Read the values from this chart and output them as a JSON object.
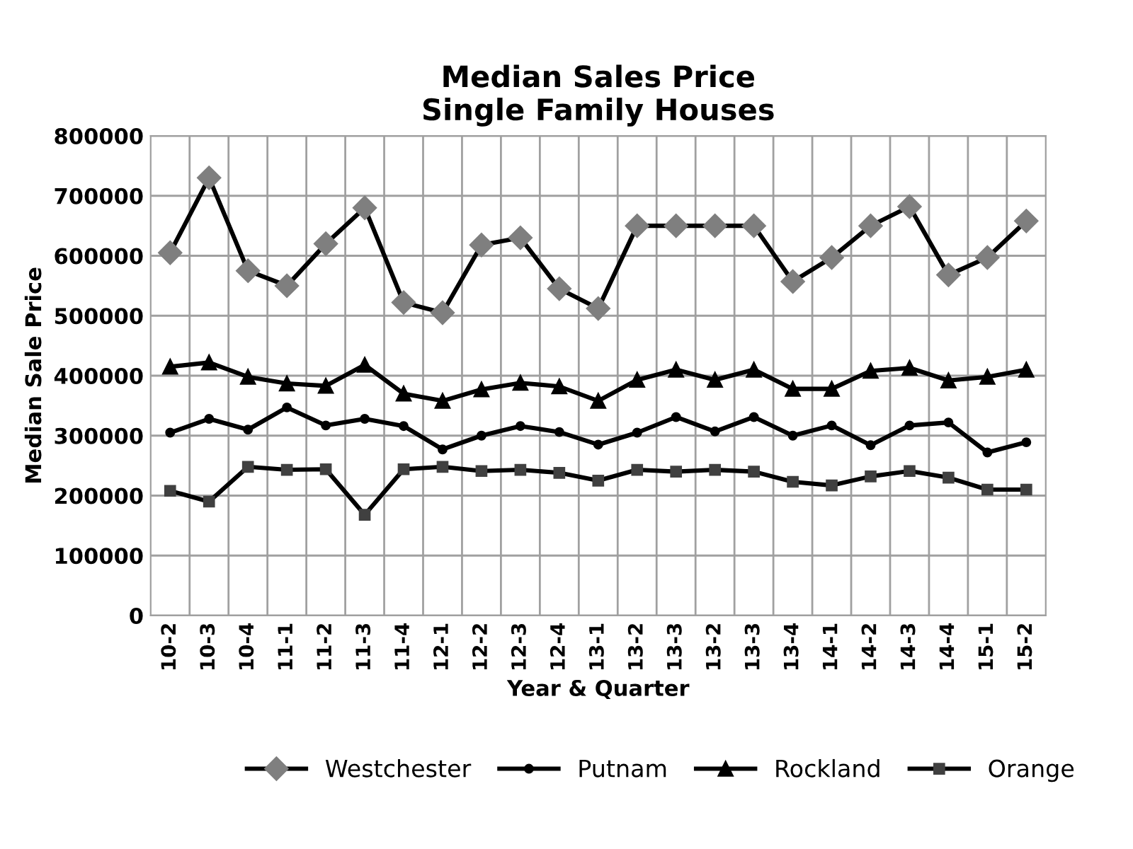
{
  "chart_data": {
    "type": "line",
    "title": "Median Sales Price\nSingle Family Houses",
    "xlabel": "Year & Quarter",
    "ylabel": "Median Sale Price",
    "categories": [
      "10-2",
      "10-3",
      "10-4",
      "11-1",
      "11-2",
      "11-3",
      "11-4",
      "12-1",
      "12-2",
      "12-3",
      "12-4",
      "13-1",
      "13-2",
      "13-3",
      "13-2",
      "13-3",
      "13-4",
      "14-1",
      "14-2",
      "14-3",
      "14-4",
      "15-1",
      "15-2"
    ],
    "series": [
      {
        "name": "Westchester",
        "color": "#7f7f7f",
        "marker": "diamond",
        "values": [
          605000,
          730000,
          575000,
          550000,
          620000,
          680000,
          522000,
          505000,
          618000,
          630000,
          545000,
          512000,
          650000,
          650000,
          650000,
          650000,
          557000,
          597000,
          650000,
          682000,
          568000,
          597000,
          658000
        ]
      },
      {
        "name": "Putnam",
        "color": "#000000",
        "marker": "circle",
        "values": [
          305000,
          328000,
          310000,
          347000,
          317000,
          328000,
          316000,
          277000,
          300000,
          316000,
          306000,
          285000,
          305000,
          331000,
          307000,
          331000,
          300000,
          317000,
          284000,
          317000,
          322000,
          272000,
          289000
        ]
      },
      {
        "name": "Rockland",
        "color": "#000000",
        "marker": "triangle",
        "values": [
          415000,
          422000,
          398000,
          387000,
          383000,
          418000,
          370000,
          358000,
          377000,
          388000,
          382000,
          358000,
          393000,
          410000,
          393000,
          410000,
          378000,
          378000,
          408000,
          413000,
          392000,
          398000,
          410000
        ]
      },
      {
        "name": "Orange",
        "color": "#404040",
        "marker": "square",
        "values": [
          208000,
          190000,
          248000,
          243000,
          244000,
          168000,
          244000,
          248000,
          241000,
          243000,
          238000,
          225000,
          243000,
          240000,
          243000,
          240000,
          223000,
          217000,
          232000,
          241000,
          230000,
          210000,
          210000
        ]
      }
    ],
    "ylim": [
      0,
      800000
    ],
    "yticks": [
      0,
      100000,
      200000,
      300000,
      400000,
      500000,
      600000,
      700000,
      800000
    ],
    "grid": true,
    "legend": "bottom",
    "line_style": "solid"
  }
}
